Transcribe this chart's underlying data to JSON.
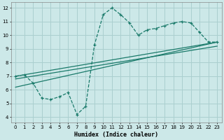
{
  "xlabel": "Humidex (Indice chaleur)",
  "bg_color": "#cce8e8",
  "grid_color": "#aacfcf",
  "line_color": "#1a7a6a",
  "xlim": [
    -0.5,
    23.5
  ],
  "ylim": [
    3.6,
    12.4
  ],
  "xticks": [
    0,
    1,
    2,
    3,
    4,
    5,
    6,
    7,
    8,
    9,
    10,
    11,
    12,
    13,
    14,
    15,
    16,
    17,
    18,
    19,
    20,
    21,
    22,
    23
  ],
  "yticks": [
    4,
    5,
    6,
    7,
    8,
    9,
    10,
    11,
    12
  ],
  "main_x": [
    0,
    1,
    2,
    3,
    4,
    5,
    6,
    7,
    8,
    9,
    10,
    11,
    12,
    13,
    14,
    15,
    16,
    17,
    18,
    19,
    20,
    21,
    22,
    23
  ],
  "main_y": [
    7.0,
    7.1,
    6.5,
    5.4,
    5.3,
    5.5,
    5.8,
    4.2,
    4.8,
    9.3,
    11.5,
    12.0,
    11.5,
    10.9,
    10.0,
    10.4,
    10.5,
    10.7,
    10.9,
    11.0,
    10.9,
    10.2,
    9.5,
    9.5
  ],
  "trend1_x": [
    0,
    23
  ],
  "trend1_y": [
    7.0,
    9.5
  ],
  "trend2_x": [
    0,
    23
  ],
  "trend2_y": [
    6.8,
    9.2
  ],
  "trend3_x": [
    0,
    23
  ],
  "trend3_y": [
    6.2,
    9.5
  ]
}
